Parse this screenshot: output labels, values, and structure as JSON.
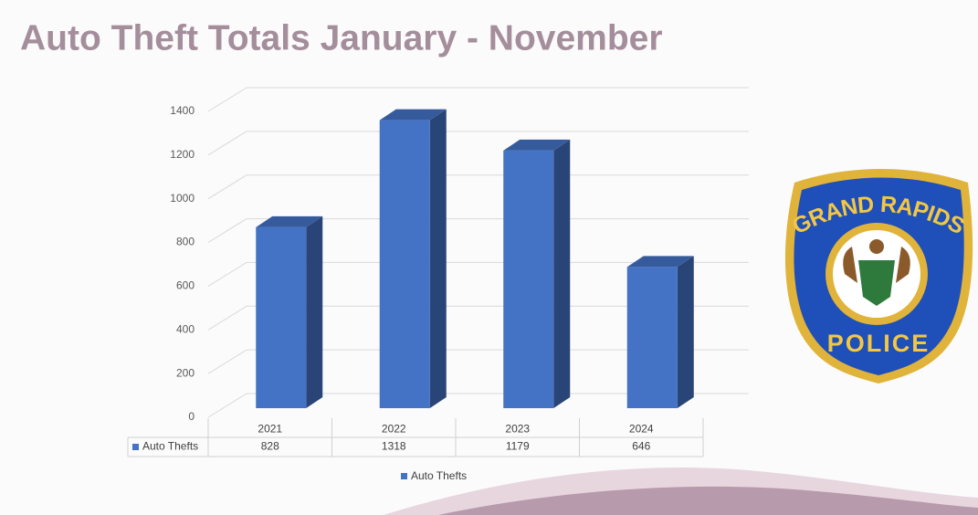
{
  "chart_data": {
    "type": "bar3d",
    "title": "Auto Theft Totals January - November",
    "categories": [
      "2021",
      "2022",
      "2023",
      "2024"
    ],
    "series": [
      {
        "name": "Auto Thefts",
        "color": "#4472c4",
        "values": [
          828,
          1318,
          1179,
          646
        ]
      }
    ],
    "ylim": [
      0,
      1400
    ],
    "yticks": [
      0,
      200,
      400,
      600,
      800,
      1000,
      1200,
      1400
    ],
    "grid": true,
    "legend": "bottom"
  },
  "logo": {
    "top_text": "GRAND RAPIDS",
    "bottom_text": "POLICE"
  }
}
